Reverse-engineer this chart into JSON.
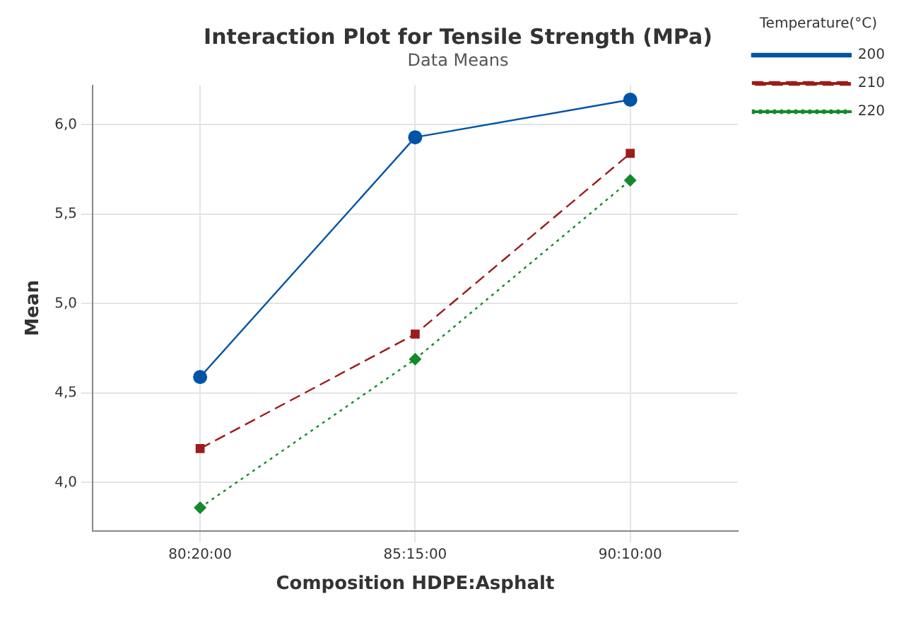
{
  "chart_data": {
    "type": "line",
    "title": "Interaction Plot for Tensile Strength (MPa)",
    "subtitle": "Data Means",
    "xlabel": "Composition HDPE:Asphalt",
    "ylabel": "Mean",
    "legend_title": "Temperature(°C)",
    "categories": [
      "80:20:00",
      "85:15:00",
      "90:10:00"
    ],
    "series": [
      {
        "name": "200",
        "color": "#0054a6",
        "values": [
          4.59,
          5.93,
          6.14
        ],
        "marker": "circle",
        "line_style": "solid"
      },
      {
        "name": "210",
        "color": "#9b1c1c",
        "values": [
          4.19,
          4.83,
          5.84
        ],
        "marker": "square",
        "line_style": "dashed"
      },
      {
        "name": "220",
        "color": "#14892c",
        "values": [
          3.86,
          4.69,
          5.69
        ],
        "marker": "diamond",
        "line_style": "dotted"
      }
    ],
    "ylim": [
      3.73,
      6.22
    ],
    "yticks": [
      {
        "value": 4,
        "label": "4,0"
      },
      {
        "value": 4.5,
        "label": "4,5"
      },
      {
        "value": 5,
        "label": "5,0"
      },
      {
        "value": 5.5,
        "label": "5,5"
      },
      {
        "value": 6,
        "label": "6,0"
      }
    ],
    "grid": true,
    "legend": "top right"
  }
}
